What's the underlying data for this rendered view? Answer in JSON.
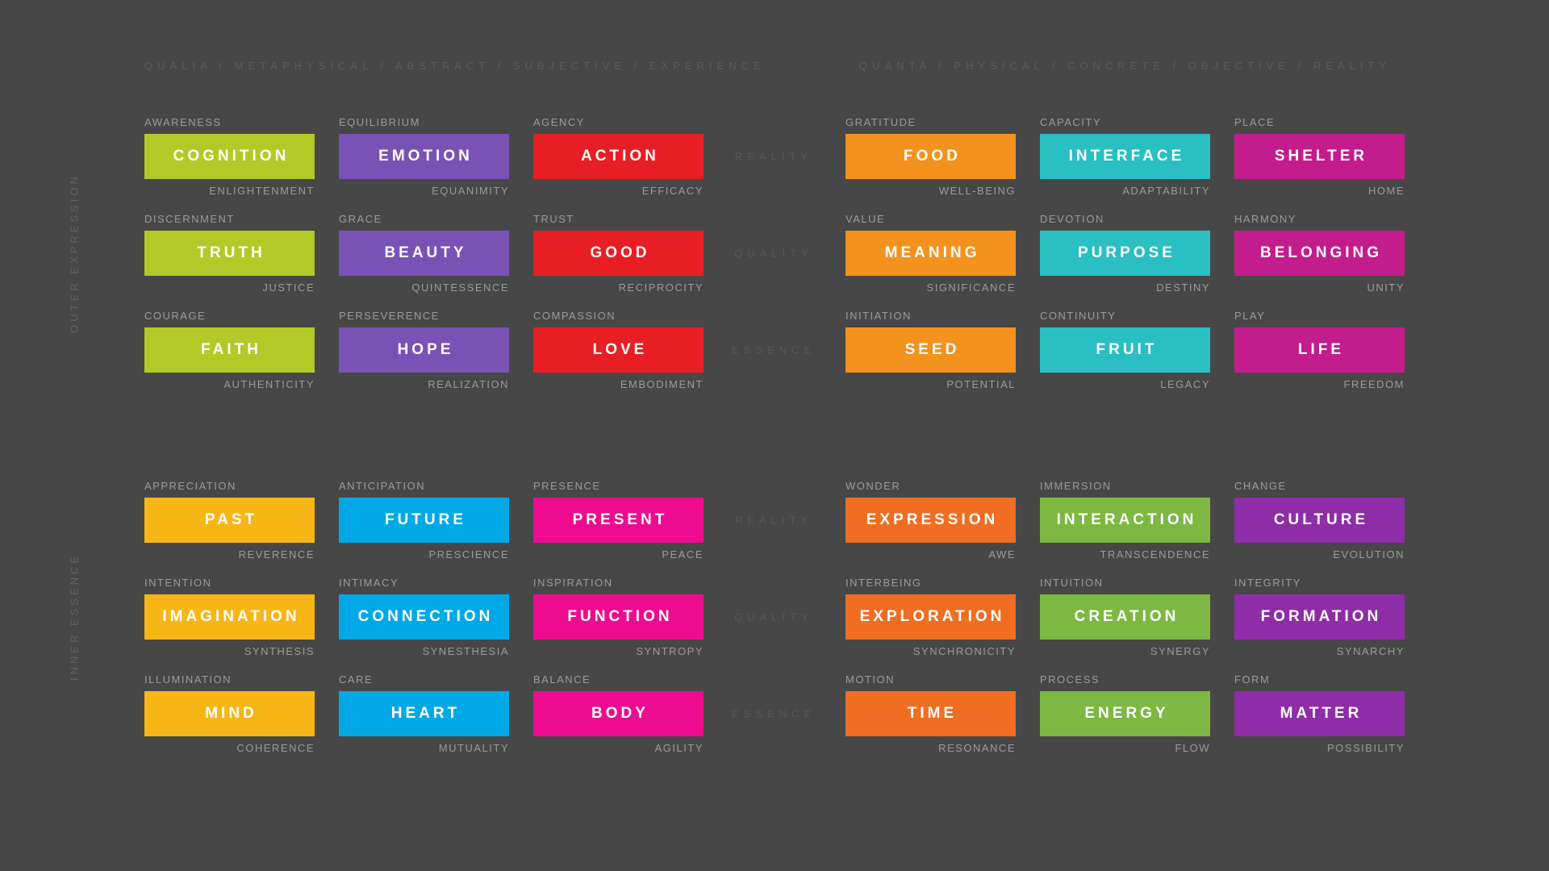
{
  "background_color": "#474747",
  "text_colors": {
    "header": "#5c5c5c",
    "axis": "#585858",
    "side": "#646464",
    "cell_labels": "#9a9a9a",
    "block_title": "#ffffff"
  },
  "headers": {
    "left": "QUALIA / METAPHYSICAL / ABSTRACT / SUBJECTIVE / EXPERIENCE",
    "right": "QUANTA / PHYSICAL / CONCRETE / OBJECTIVE / REALITY"
  },
  "side_labels": {
    "top": "OUTER EXPRESSION",
    "bottom": "INNER ESSENCE"
  },
  "groups": [
    {
      "id": "outer-expression",
      "rows": [
        {
          "axis": "REALITY",
          "left": [
            {
              "top": "AWARENESS",
              "title": "COGNITION",
              "bottom": "ENLIGHTENMENT",
              "color": "#b3c927"
            },
            {
              "top": "EQUILIBRIUM",
              "title": "EMOTION",
              "bottom": "EQUANIMITY",
              "color": "#7a52b5"
            },
            {
              "top": "AGENCY",
              "title": "ACTION",
              "bottom": "EFFICACY",
              "color": "#e71f24"
            }
          ],
          "right": [
            {
              "top": "GRATITUDE",
              "title": "FOOD",
              "bottom": "WELL-BEING",
              "color": "#f4921e"
            },
            {
              "top": "CAPACITY",
              "title": "INTERFACE",
              "bottom": "ADAPTABILITY",
              "color": "#2abfc2"
            },
            {
              "top": "PLACE",
              "title": "SHELTER",
              "bottom": "HOME",
              "color": "#c31c8d"
            }
          ]
        },
        {
          "axis": "QUALITY",
          "left": [
            {
              "top": "DISCERNMENT",
              "title": "TRUTH",
              "bottom": "JUSTICE",
              "color": "#b3c927"
            },
            {
              "top": "GRACE",
              "title": "BEAUTY",
              "bottom": "QUINTESSENCE",
              "color": "#7a52b5"
            },
            {
              "top": "TRUST",
              "title": "GOOD",
              "bottom": "RECIPROCITY",
              "color": "#e71f24"
            }
          ],
          "right": [
            {
              "top": "VALUE",
              "title": "MEANING",
              "bottom": "SIGNIFICANCE",
              "color": "#f4921e"
            },
            {
              "top": "DEVOTION",
              "title": "PURPOSE",
              "bottom": "DESTINY",
              "color": "#2abfc2"
            },
            {
              "top": "HARMONY",
              "title": "BELONGING",
              "bottom": "UNITY",
              "color": "#c31c8d"
            }
          ]
        },
        {
          "axis": "ESSENCE",
          "left": [
            {
              "top": "COURAGE",
              "title": "FAITH",
              "bottom": "AUTHENTICITY",
              "color": "#b3c927"
            },
            {
              "top": "PERSEVERENCE",
              "title": "HOPE",
              "bottom": "REALIZATION",
              "color": "#7a52b5"
            },
            {
              "top": "COMPASSION",
              "title": "LOVE",
              "bottom": "EMBODIMENT",
              "color": "#e71f24"
            }
          ],
          "right": [
            {
              "top": "INITIATION",
              "title": "SEED",
              "bottom": "POTENTIAL",
              "color": "#f4921e"
            },
            {
              "top": "CONTINUITY",
              "title": "FRUIT",
              "bottom": "LEGACY",
              "color": "#2abfc2"
            },
            {
              "top": "PLAY",
              "title": "LIFE",
              "bottom": "FREEDOM",
              "color": "#c31c8d"
            }
          ]
        }
      ]
    },
    {
      "id": "inner-essence",
      "rows": [
        {
          "axis": "REALITY",
          "left": [
            {
              "top": "APPRECIATION",
              "title": "PAST",
              "bottom": "REVERENCE",
              "color": "#f8b616"
            },
            {
              "top": "ANTICIPATION",
              "title": "FUTURE",
              "bottom": "PRESCIENCE",
              "color": "#00a9e6"
            },
            {
              "top": "PRESENCE",
              "title": "PRESENT",
              "bottom": "PEACE",
              "color": "#ed0c8f"
            }
          ],
          "right": [
            {
              "top": "WONDER",
              "title": "EXPRESSION",
              "bottom": "AWE",
              "color": "#f06d22"
            },
            {
              "top": "IMMERSION",
              "title": "INTERACTION",
              "bottom": "TRANSCENDENCE",
              "color": "#7cb842"
            },
            {
              "top": "CHANGE",
              "title": "CULTURE",
              "bottom": "EVOLUTION",
              "color": "#8f2ca8"
            }
          ]
        },
        {
          "axis": "QUALITY",
          "left": [
            {
              "top": "INTENTION",
              "title": "IMAGINATION",
              "bottom": "SYNTHESIS",
              "color": "#f8b616"
            },
            {
              "top": "INTIMACY",
              "title": "CONNECTION",
              "bottom": "SYNESTHESIA",
              "color": "#00a9e6"
            },
            {
              "top": "INSPIRATION",
              "title": "FUNCTION",
              "bottom": "SYNTROPY",
              "color": "#ed0c8f"
            }
          ],
          "right": [
            {
              "top": "INTERBEING",
              "title": "EXPLORATION",
              "bottom": "SYNCHRONICITY",
              "color": "#f06d22"
            },
            {
              "top": "INTUITION",
              "title": "CREATION",
              "bottom": "SYNERGY",
              "color": "#7cb842"
            },
            {
              "top": "INTEGRITY",
              "title": "FORMATION",
              "bottom": "SYNARCHY",
              "color": "#8f2ca8"
            }
          ]
        },
        {
          "axis": "ESSENCE",
          "left": [
            {
              "top": "ILLUMINATION",
              "title": "MIND",
              "bottom": "COHERENCE",
              "color": "#f8b616"
            },
            {
              "top": "CARE",
              "title": "HEART",
              "bottom": "MUTUALITY",
              "color": "#00a9e6"
            },
            {
              "top": "BALANCE",
              "title": "BODY",
              "bottom": "AGILITY",
              "color": "#ed0c8f"
            }
          ],
          "right": [
            {
              "top": "MOTION",
              "title": "TIME",
              "bottom": "RESONANCE",
              "color": "#f06d22"
            },
            {
              "top": "PROCESS",
              "title": "ENERGY",
              "bottom": "FLOW",
              "color": "#7cb842"
            },
            {
              "top": "FORM",
              "title": "MATTER",
              "bottom": "POSSIBILITY",
              "color": "#8f2ca8"
            }
          ]
        }
      ]
    }
  ]
}
